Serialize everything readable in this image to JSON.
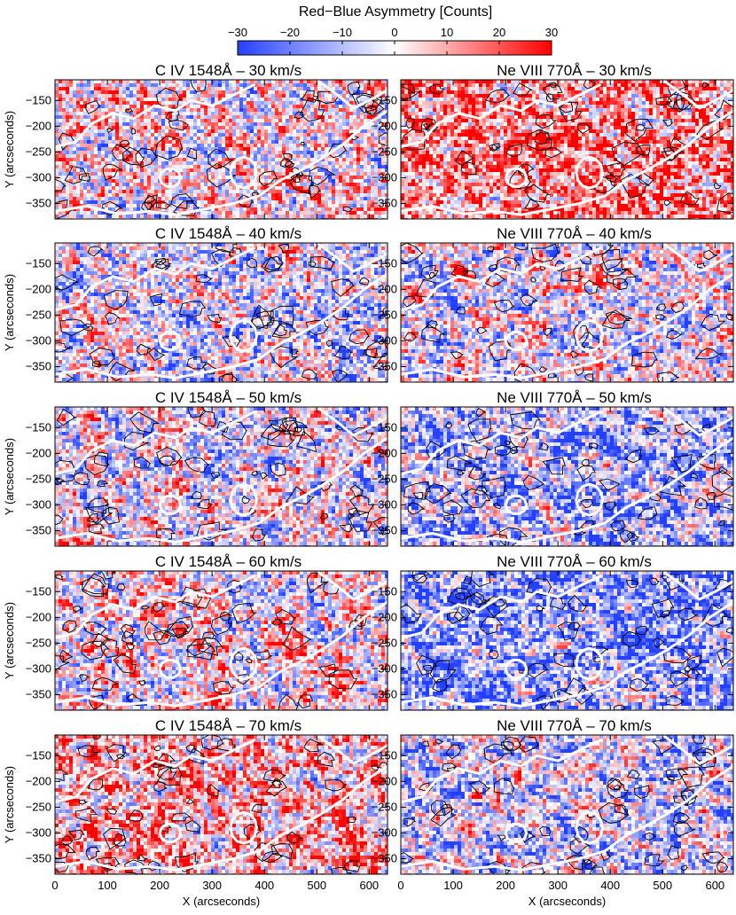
{
  "colorbar": {
    "title": "Red−Blue Asymmetry [Counts]",
    "range": [
      -30,
      30
    ],
    "ticks": [
      "−30",
      "−20",
      "−10",
      "0",
      "10",
      "20",
      "30"
    ],
    "tick_values": [
      -30,
      -20,
      -10,
      0,
      10,
      20,
      30
    ],
    "colors": {
      "negative": "#2440ff",
      "zero": "#ffffff",
      "positive": "#ff0000"
    }
  },
  "chart_data": {
    "type": "heatmap",
    "xlabel": "X (arcseconds)",
    "ylabel": "Y (arcseconds)",
    "xlim": [
      0,
      635
    ],
    "ylim": [
      -380,
      -110
    ],
    "xticks": [
      "0",
      "100",
      "200",
      "300",
      "400",
      "500",
      "600"
    ],
    "xtick_values": [
      0,
      100,
      200,
      300,
      400,
      500,
      600
    ],
    "yticks": [
      "−150",
      "−200",
      "−250",
      "−300",
      "−350"
    ],
    "ytick_values": [
      -150,
      -200,
      -250,
      -300,
      -350
    ],
    "overlays": "black and white contours",
    "panels": [
      {
        "title": "C IV 1548Å – 30 km/s",
        "ion": "C IV",
        "velocity_kms": 30,
        "mean_asymmetry": 2
      },
      {
        "title": "Ne VIII 770Å – 30 km/s",
        "ion": "Ne VIII",
        "velocity_kms": 30,
        "mean_asymmetry": 13
      },
      {
        "title": "C IV 1548Å – 40 km/s",
        "ion": "C IV",
        "velocity_kms": 40,
        "mean_asymmetry": -4
      },
      {
        "title": "Ne VIII 770Å – 40 km/s",
        "ion": "Ne VIII",
        "velocity_kms": 40,
        "mean_asymmetry": -2
      },
      {
        "title": "C IV 1548Å – 50 km/s",
        "ion": "C IV",
        "velocity_kms": 50,
        "mean_asymmetry": -1
      },
      {
        "title": "Ne VIII 770Å – 50 km/s",
        "ion": "Ne VIII",
        "velocity_kms": 50,
        "mean_asymmetry": -11
      },
      {
        "title": "C IV 1548Å – 60 km/s",
        "ion": "C IV",
        "velocity_kms": 60,
        "mean_asymmetry": 1
      },
      {
        "title": "Ne VIII 770Å – 60 km/s",
        "ion": "Ne VIII",
        "velocity_kms": 60,
        "mean_asymmetry": -15
      },
      {
        "title": "C IV 1548Å – 70 km/s",
        "ion": "C IV",
        "velocity_kms": 70,
        "mean_asymmetry": 8
      },
      {
        "title": "Ne VIII 770Å – 70 km/s",
        "ion": "Ne VIII",
        "velocity_kms": 70,
        "mean_asymmetry": -5
      }
    ]
  }
}
